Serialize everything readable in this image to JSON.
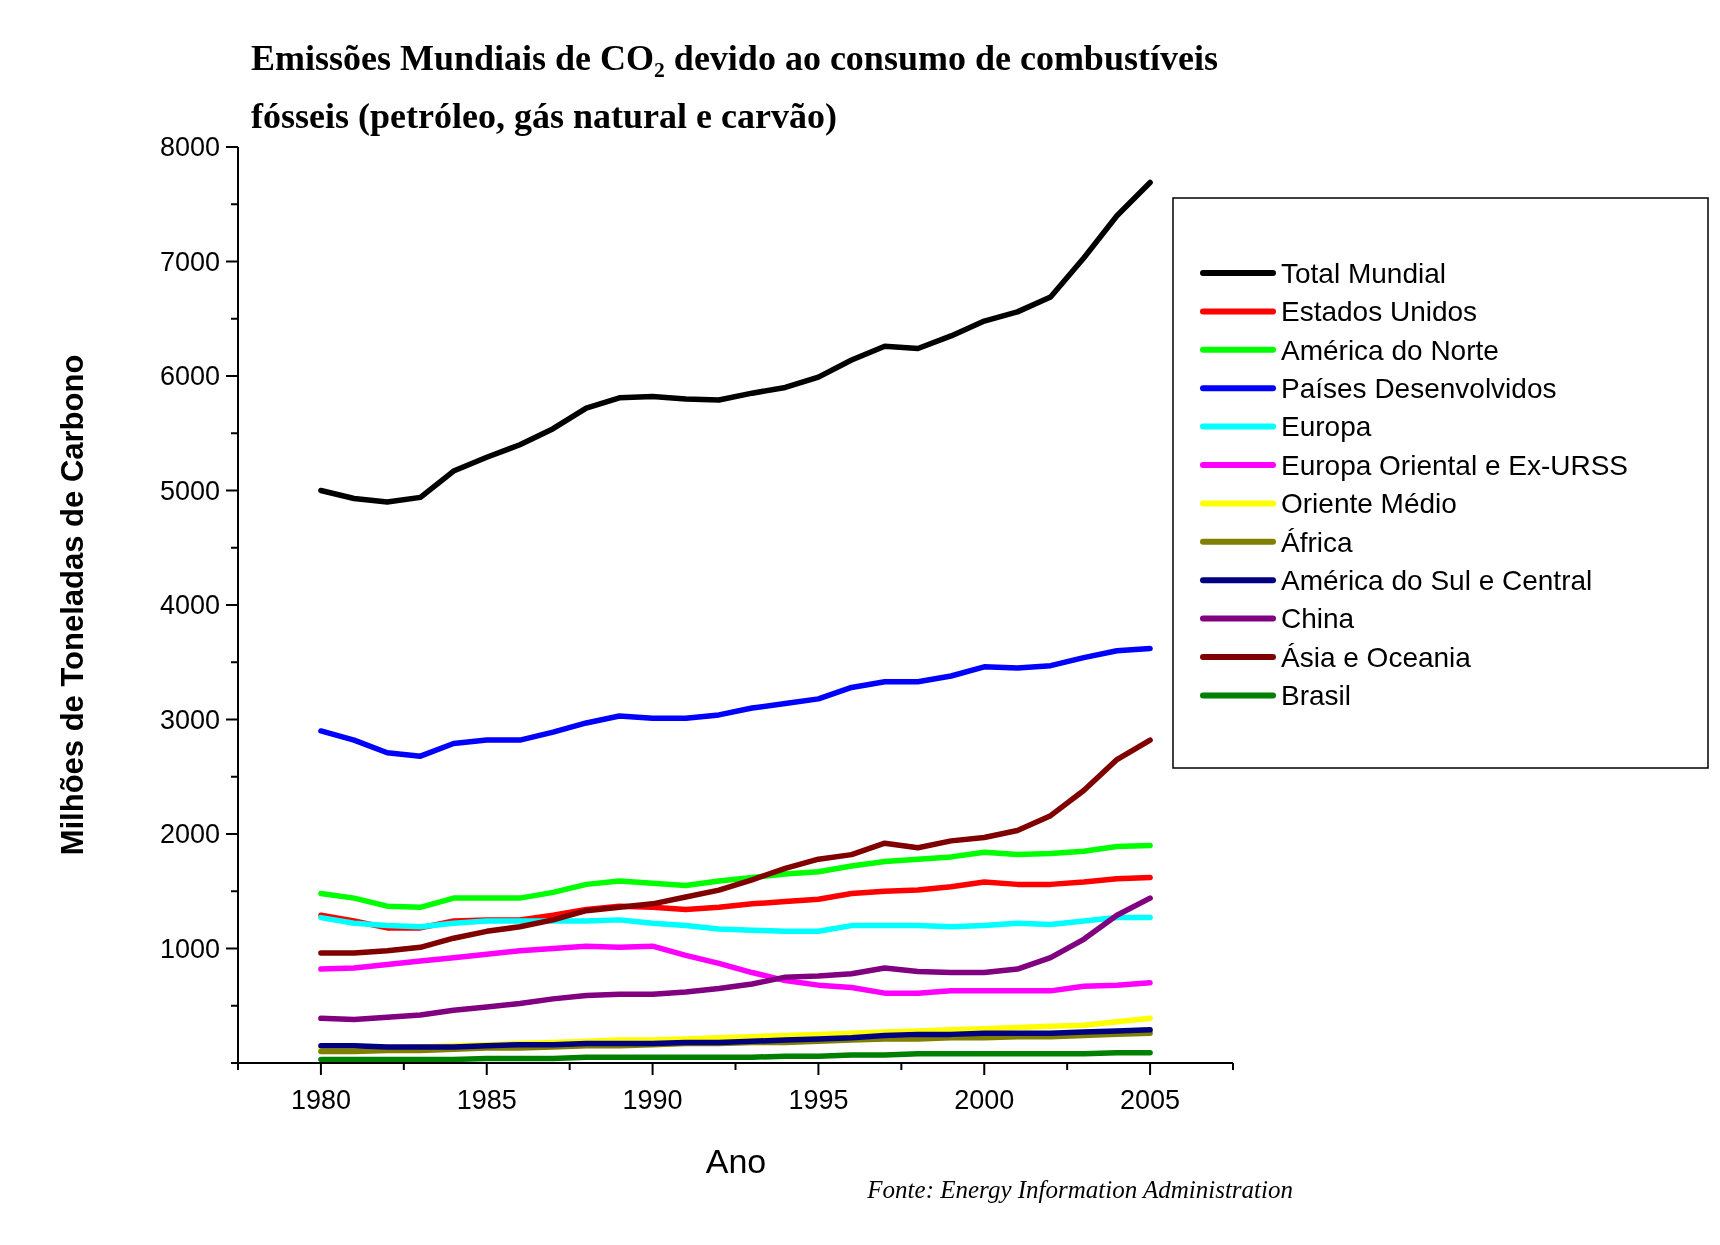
{
  "chart_data": {
    "type": "line",
    "title": "Emissões Mundiais de CO₂ devido ao consumo de combustíveis fósseis (petróleo, gás natural e carvão)",
    "xlabel": "Ano",
    "ylabel": "Milhões de Toneladas de Carbono",
    "annotations": [
      "Fonte: Energy Information Administration"
    ],
    "x": [
      1980,
      1981,
      1982,
      1983,
      1984,
      1985,
      1986,
      1987,
      1988,
      1989,
      1990,
      1991,
      1992,
      1993,
      1994,
      1995,
      1996,
      1997,
      1998,
      1999,
      2000,
      2001,
      2002,
      2003,
      2004,
      2005
    ],
    "xlim": [
      1977.5,
      2007.5
    ],
    "xticks": [
      {
        "value": 1977.5,
        "label": null
      },
      1980,
      {
        "value": 1982.5,
        "label": null
      },
      1985,
      {
        "value": 1987.5,
        "label": null
      },
      1990,
      {
        "value": 1992.5,
        "label": null
      },
      1995,
      {
        "value": 1997.5,
        "label": null
      },
      2000,
      {
        "value": 2002.5,
        "label": null
      },
      2005,
      {
        "value": 2007.5,
        "label": null
      }
    ],
    "ylim": [
      0,
      8000
    ],
    "yticks": [
      {
        "value": 0,
        "label": null
      },
      {
        "value": 500,
        "label": null
      },
      1000,
      {
        "value": 1500,
        "label": null
      },
      2000,
      {
        "value": 2500,
        "label": null
      },
      3000,
      {
        "value": 3500,
        "label": null
      },
      4000,
      {
        "value": 4500,
        "label": null
      },
      5000,
      {
        "value": 5500,
        "label": null
      },
      6000,
      {
        "value": 6500,
        "label": null
      },
      7000,
      {
        "value": 7500,
        "label": null
      },
      8000
    ],
    "grid": false,
    "legend": "right",
    "line_style": "solid",
    "series": [
      {
        "name": "Total Mundial",
        "color": "#000000",
        "values": [
          5000,
          4930,
          4900,
          4940,
          5170,
          5290,
          5400,
          5540,
          5720,
          5810,
          5820,
          5800,
          5790,
          5850,
          5900,
          5990,
          6140,
          6260,
          6240,
          6350,
          6480,
          6560,
          6690,
          7030,
          7400,
          7690
        ]
      },
      {
        "name": "Estados Unidos",
        "color": "#ff0000",
        "values": [
          1290,
          1240,
          1180,
          1180,
          1240,
          1250,
          1250,
          1290,
          1340,
          1370,
          1360,
          1340,
          1360,
          1390,
          1410,
          1430,
          1480,
          1500,
          1510,
          1540,
          1580,
          1560,
          1560,
          1580,
          1610,
          1620
        ]
      },
      {
        "name": "América do Norte",
        "color": "#00ff00",
        "values": [
          1480,
          1440,
          1370,
          1360,
          1440,
          1440,
          1440,
          1490,
          1560,
          1590,
          1570,
          1550,
          1590,
          1620,
          1650,
          1670,
          1720,
          1760,
          1780,
          1800,
          1840,
          1820,
          1830,
          1850,
          1890,
          1900
        ]
      },
      {
        "name": "Países Desenvolvidos",
        "color": "#0000ff",
        "values": [
          2900,
          2820,
          2710,
          2680,
          2790,
          2820,
          2820,
          2890,
          2970,
          3030,
          3010,
          3010,
          3040,
          3100,
          3140,
          3180,
          3280,
          3330,
          3330,
          3380,
          3460,
          3450,
          3470,
          3540,
          3600,
          3620
        ]
      },
      {
        "name": "Europa",
        "color": "#00ffff",
        "values": [
          1270,
          1220,
          1200,
          1190,
          1220,
          1240,
          1240,
          1240,
          1240,
          1250,
          1220,
          1200,
          1170,
          1160,
          1150,
          1150,
          1200,
          1200,
          1200,
          1190,
          1200,
          1220,
          1210,
          1240,
          1270,
          1270
        ]
      },
      {
        "name": "Europa Oriental e Ex-URSS",
        "color": "#ff00ff",
        "values": [
          820,
          830,
          860,
          890,
          920,
          950,
          980,
          1000,
          1020,
          1010,
          1020,
          940,
          870,
          790,
          720,
          680,
          660,
          610,
          610,
          630,
          630,
          630,
          630,
          670,
          680,
          700
        ]
      },
      {
        "name": "Oriente Médio",
        "color": "#ffff00",
        "values": [
          130,
          130,
          130,
          140,
          150,
          160,
          170,
          180,
          190,
          200,
          200,
          210,
          220,
          230,
          240,
          250,
          260,
          270,
          280,
          290,
          300,
          310,
          320,
          330,
          360,
          390
        ]
      },
      {
        "name": "África",
        "color": "#808000",
        "values": [
          100,
          100,
          110,
          110,
          120,
          130,
          130,
          140,
          150,
          150,
          160,
          170,
          170,
          180,
          180,
          190,
          200,
          210,
          210,
          220,
          220,
          230,
          230,
          240,
          250,
          260
        ]
      },
      {
        "name": "América do Sul e Central",
        "color": "#000080",
        "values": [
          150,
          150,
          140,
          140,
          140,
          150,
          160,
          160,
          170,
          170,
          170,
          180,
          180,
          190,
          200,
          210,
          220,
          240,
          250,
          250,
          260,
          260,
          260,
          270,
          280,
          290
        ]
      },
      {
        "name": "China",
        "color": "#800080",
        "values": [
          390,
          380,
          400,
          420,
          460,
          490,
          520,
          560,
          590,
          600,
          600,
          620,
          650,
          690,
          750,
          760,
          780,
          830,
          800,
          790,
          790,
          820,
          920,
          1080,
          1290,
          1440
        ]
      },
      {
        "name": "Ásia e Oceania",
        "color": "#800000",
        "values": [
          960,
          960,
          980,
          1010,
          1090,
          1150,
          1190,
          1250,
          1330,
          1360,
          1390,
          1450,
          1510,
          1600,
          1700,
          1780,
          1820,
          1920,
          1880,
          1940,
          1970,
          2030,
          2160,
          2380,
          2650,
          2820
        ]
      },
      {
        "name": "Brasil",
        "color": "#008000",
        "values": [
          30,
          30,
          30,
          30,
          30,
          40,
          40,
          40,
          50,
          50,
          50,
          50,
          50,
          50,
          60,
          60,
          70,
          70,
          80,
          80,
          80,
          80,
          80,
          80,
          90,
          90
        ]
      }
    ]
  }
}
